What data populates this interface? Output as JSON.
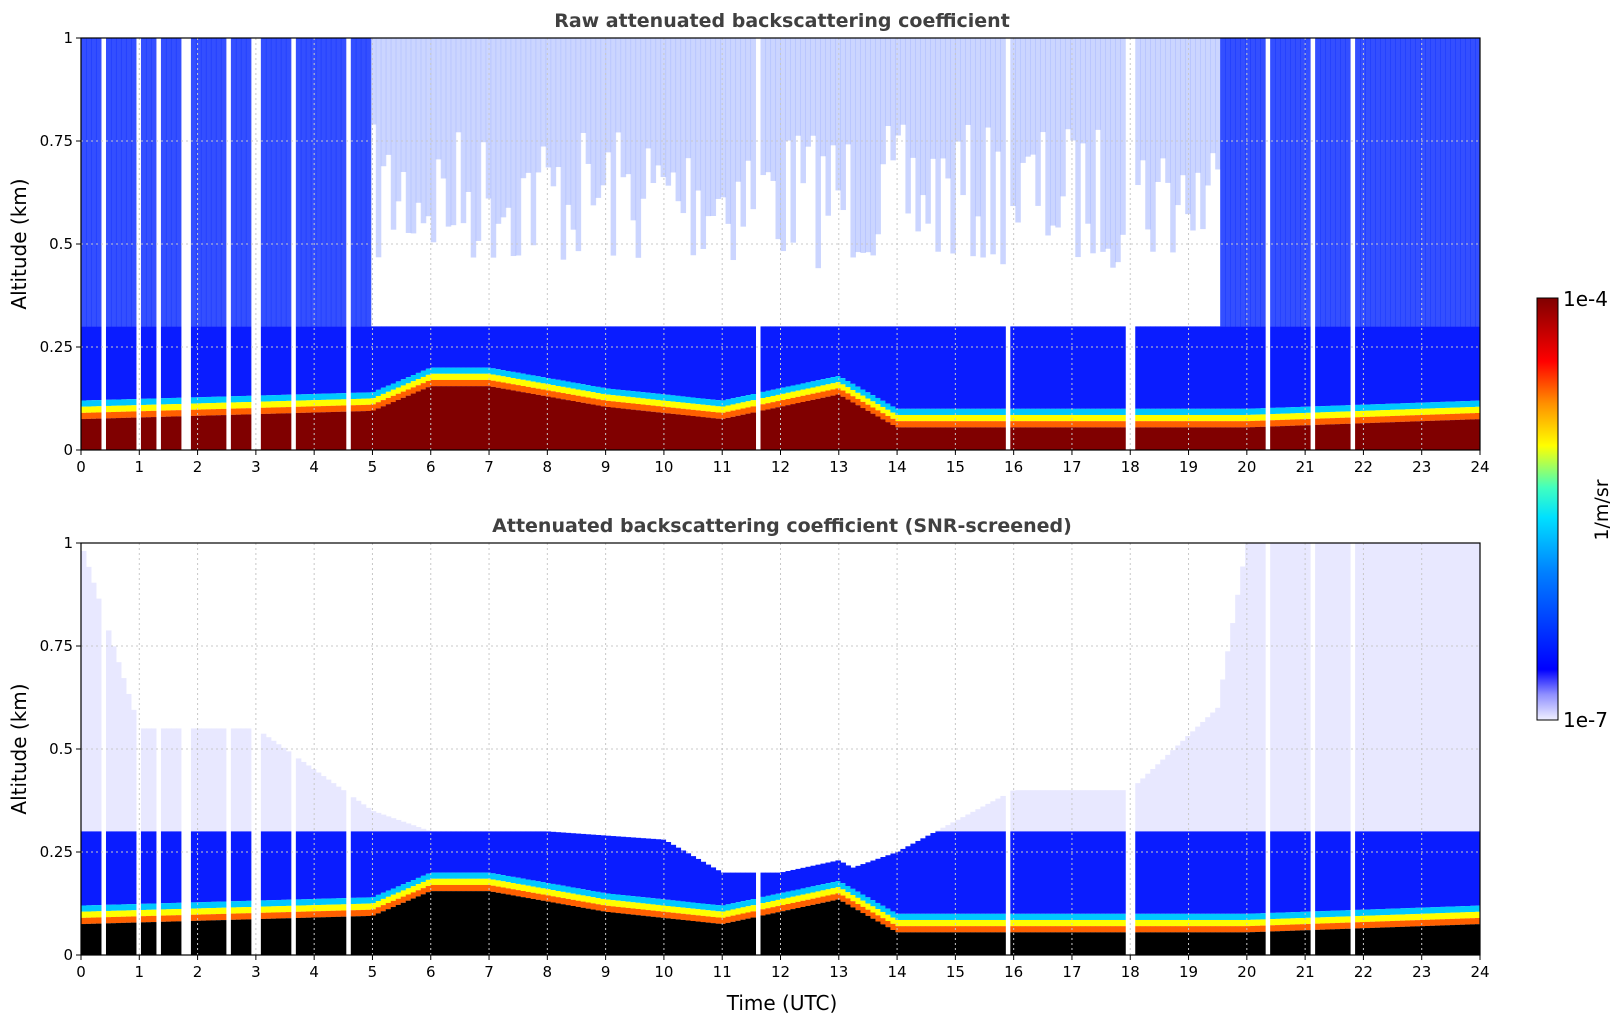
{
  "chart_data": [
    {
      "type": "heatmap",
      "title": "Raw attenuated backscattering coefficient",
      "xlabel": "",
      "ylabel": "Altitude (km)",
      "xlim": [
        0,
        24
      ],
      "ylim": [
        0,
        1
      ],
      "x_ticks": [
        "0",
        "1",
        "2",
        "3",
        "4",
        "5",
        "6",
        "7",
        "8",
        "9",
        "10",
        "11",
        "12",
        "13",
        "14",
        "15",
        "16",
        "17",
        "18",
        "19",
        "20",
        "21",
        "22",
        "23",
        "24"
      ],
      "y_ticks": [
        "0",
        "0.25",
        "0.5",
        "0.75",
        "1"
      ],
      "grid": true,
      "surface_layer_top_km": [
        {
          "t": 0,
          "km": 0.12
        },
        {
          "t": 5,
          "km": 0.14
        },
        {
          "t": 6,
          "km": 0.2
        },
        {
          "t": 7,
          "km": 0.2
        },
        {
          "t": 9,
          "km": 0.15
        },
        {
          "t": 11,
          "km": 0.12
        },
        {
          "t": 13,
          "km": 0.18
        },
        {
          "t": 14,
          "km": 0.1
        },
        {
          "t": 20,
          "km": 0.1
        },
        {
          "t": 24,
          "km": 0.12
        }
      ],
      "data_gaps_utc": [
        0.4,
        0.95,
        1.35,
        1.8,
        2.5,
        3.0,
        3.65,
        4.6,
        11.6,
        15.9,
        18.0,
        20.35,
        21.1,
        21.8
      ]
    },
    {
      "type": "heatmap",
      "title": "Attenuated backscattering coefficient (SNR-screened)",
      "xlabel": "Time (UTC)",
      "ylabel": "Altitude (km)",
      "xlim": [
        0,
        24
      ],
      "ylim": [
        0,
        1
      ],
      "x_ticks": [
        "0",
        "1",
        "2",
        "3",
        "4",
        "5",
        "6",
        "7",
        "8",
        "9",
        "10",
        "11",
        "12",
        "13",
        "14",
        "15",
        "16",
        "17",
        "18",
        "19",
        "20",
        "21",
        "22",
        "23",
        "24"
      ],
      "y_ticks": [
        "0",
        "0.25",
        "0.5",
        "0.75",
        "1"
      ],
      "grid": true,
      "signal_top_km": [
        {
          "t": 0,
          "km": 1.0
        },
        {
          "t": 1,
          "km": 0.55
        },
        {
          "t": 3,
          "km": 0.55
        },
        {
          "t": 5,
          "km": 0.35
        },
        {
          "t": 6,
          "km": 0.3
        },
        {
          "t": 8,
          "km": 0.3
        },
        {
          "t": 10,
          "km": 0.28
        },
        {
          "t": 11,
          "km": 0.2
        },
        {
          "t": 13,
          "km": 0.2
        },
        {
          "t": 14,
          "km": 0.25
        },
        {
          "t": 16,
          "km": 0.4
        },
        {
          "t": 18,
          "km": 0.4
        },
        {
          "t": 19.5,
          "km": 0.6
        },
        {
          "t": 20,
          "km": 1.0
        },
        {
          "t": 24,
          "km": 1.0
        }
      ],
      "data_gaps_utc": [
        0.4,
        0.95,
        1.35,
        1.8,
        2.5,
        3.0,
        3.65,
        4.6,
        11.6,
        15.9,
        18.0,
        20.35,
        21.1,
        21.8
      ]
    }
  ],
  "colorbar": {
    "max_label": "1e-4",
    "min_label": "1e-7",
    "label": "1/m/sr",
    "colormap": "jet",
    "colors": [
      "#eeeeff",
      "#0000ff",
      "#00b0ff",
      "#00ffd0",
      "#ffff00",
      "#ff8000",
      "#ff0000",
      "#800000"
    ]
  },
  "colors": {
    "saturated_screened": "#000000",
    "grid": "#c8c8c8"
  }
}
